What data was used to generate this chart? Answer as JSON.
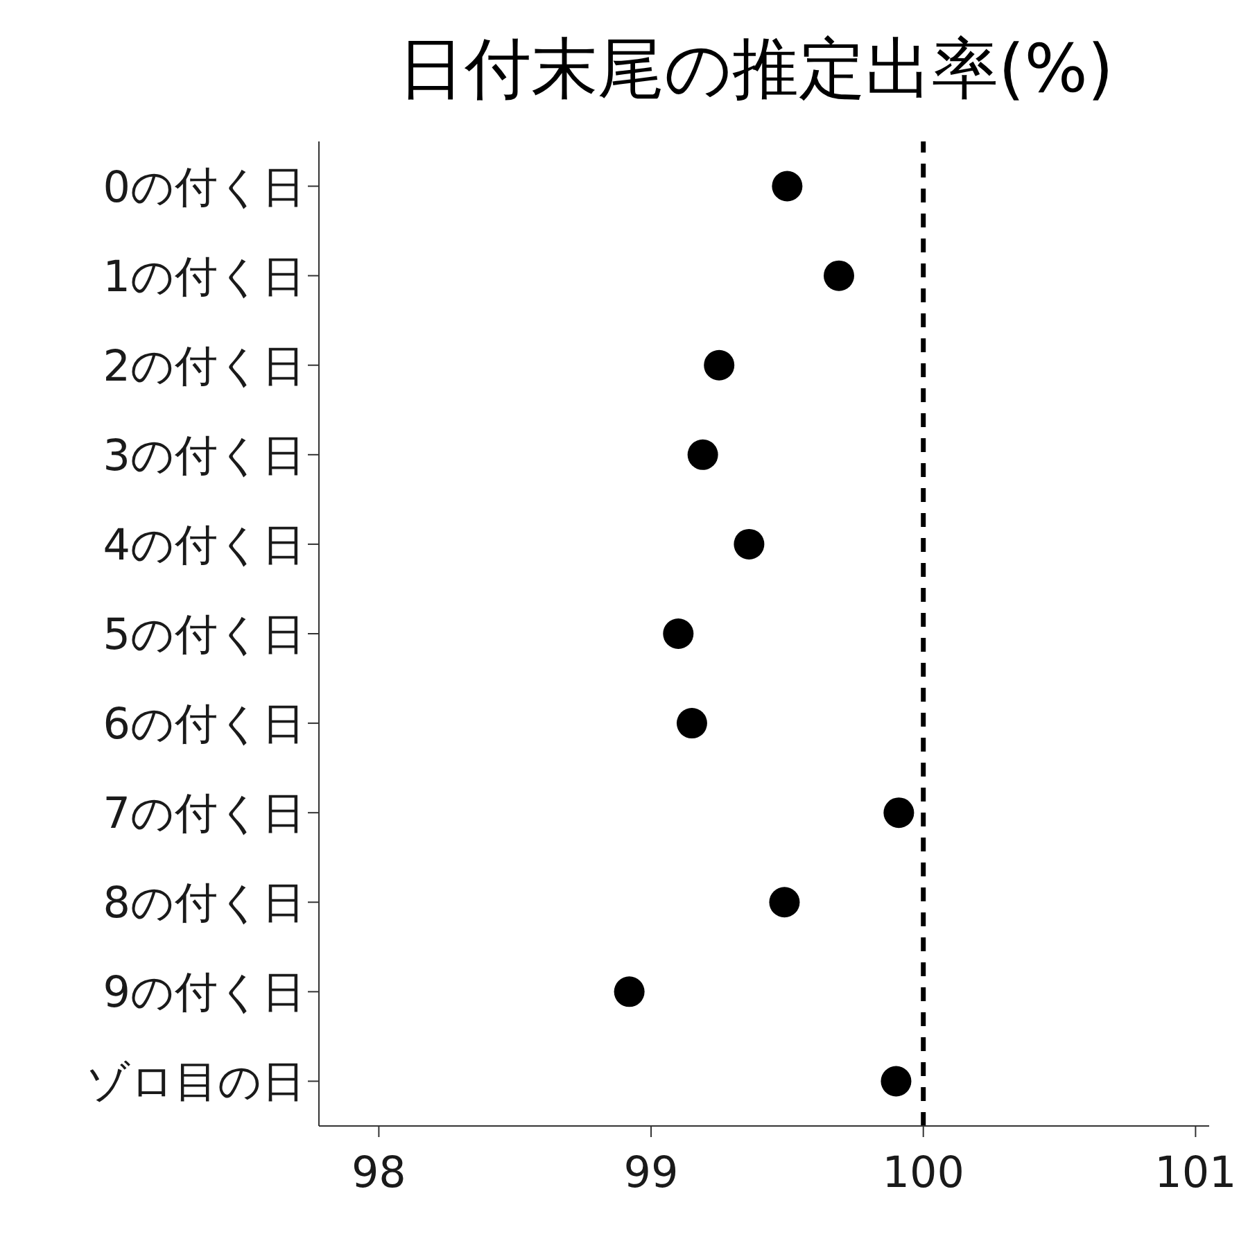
{
  "chart_data": {
    "type": "scatter",
    "title": "日付末尾の推定出率(%)",
    "orientation": "horizontal",
    "categories": [
      "0の付く日",
      "1の付く日",
      "2の付く日",
      "3の付く日",
      "4の付く日",
      "5の付く日",
      "6の付く日",
      "7の付く日",
      "8の付く日",
      "9の付く日",
      "ゾロ目の日"
    ],
    "values": [
      99.5,
      99.69,
      99.25,
      99.19,
      99.36,
      99.1,
      99.15,
      99.91,
      99.49,
      98.92,
      99.9
    ],
    "color": "#000000",
    "marker": "circle",
    "grid": false,
    "legend": false,
    "xlim": [
      97.78,
      101.05
    ],
    "xticks": [
      98,
      99,
      100,
      101
    ],
    "ref_lines": [
      {
        "axis": "x",
        "value": 100,
        "color": "#000000",
        "line_style": "dashed"
      }
    ]
  }
}
